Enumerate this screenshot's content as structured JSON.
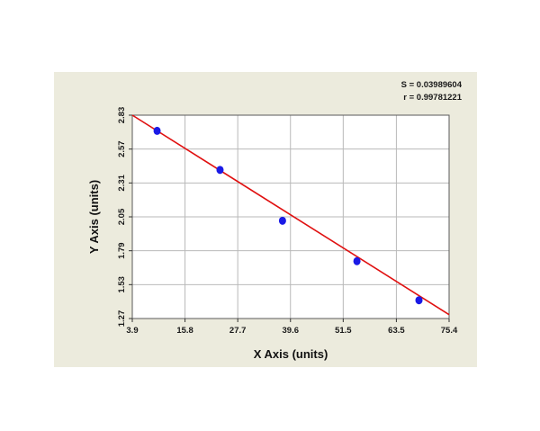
{
  "colors": {
    "panel_background": "#ecebdd",
    "plot_background": "#ffffff",
    "grid": "#b9b9b9",
    "fit_line": "#e01010",
    "marker": "#1a1ae6"
  },
  "stats": {
    "s_text": "S = 0.03989604",
    "r_text": "r = 0.99781221"
  },
  "chart_data": {
    "type": "scatter",
    "title": "",
    "xlabel": "X Axis (units)",
    "ylabel": "Y Axis (units)",
    "xlim": [
      3.9,
      75.4
    ],
    "ylim": [
      1.27,
      2.83
    ],
    "x_ticks": [
      3.9,
      15.8,
      27.7,
      39.6,
      51.5,
      63.5,
      75.4
    ],
    "x_tick_labels": [
      "3.9",
      "15.8",
      "27.7",
      "39.6",
      "51.5",
      "63.5",
      "75.4"
    ],
    "y_ticks": [
      1.27,
      1.53,
      1.79,
      2.05,
      2.31,
      2.57,
      2.83
    ],
    "y_tick_labels": [
      "1.27",
      "1.53",
      "1.79",
      "2.05",
      "2.31",
      "2.57",
      "2.83"
    ],
    "grid": true,
    "legend": "none",
    "points": [
      {
        "x": 9.5,
        "y": 2.71
      },
      {
        "x": 23.7,
        "y": 2.41
      },
      {
        "x": 37.8,
        "y": 2.02
      },
      {
        "x": 54.6,
        "y": 1.71
      },
      {
        "x": 68.6,
        "y": 1.41
      }
    ],
    "fit_line": {
      "x": [
        3.9,
        75.4
      ],
      "y": [
        2.83,
        1.3
      ]
    }
  }
}
